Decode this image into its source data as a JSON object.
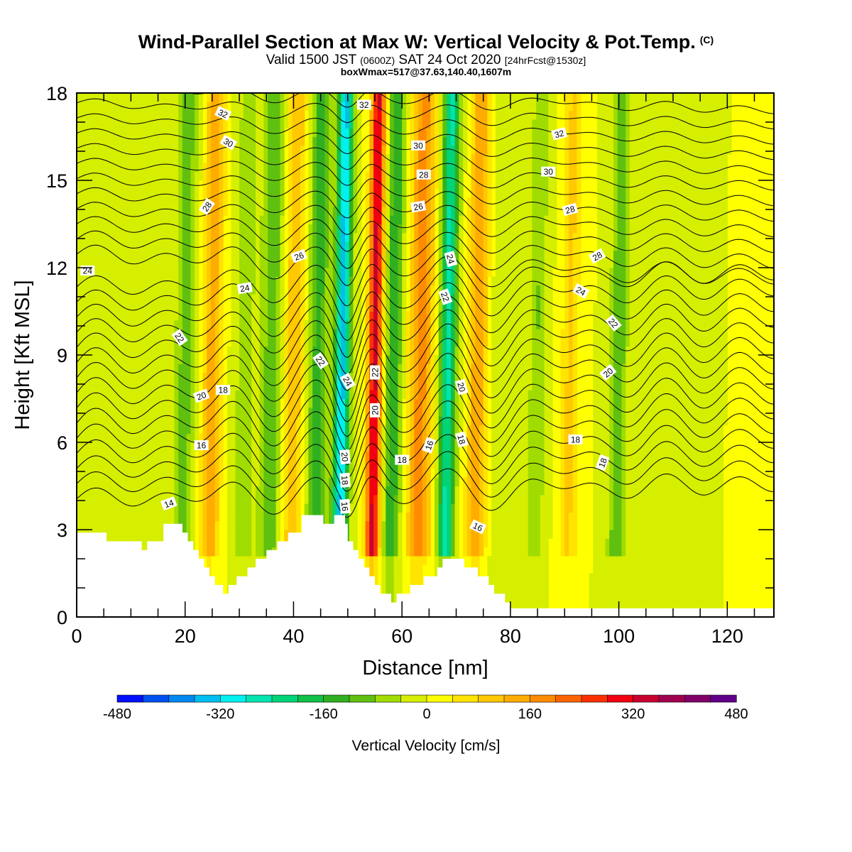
{
  "header": {
    "title": "Wind-Parallel Section at Max W: Vertical Velocity & Pot.Temp.",
    "title_mark": "(C)",
    "valid_prefix": "Valid 1500 JST",
    "valid_utc": "(0600Z)",
    "valid_date": "SAT 24 Oct 2020",
    "forecast": "[24hrFcst@1530z]",
    "boxinfo": "boxWmax=517@37.63,140.40,1607m"
  },
  "chart_data": {
    "type": "heatmap",
    "xlabel": "Distance [nm]",
    "ylabel": "Height [Kft MSL]",
    "xlim": [
      0,
      128.6
    ],
    "ylim": [
      0,
      18
    ],
    "xticks": [
      0,
      20,
      40,
      60,
      80,
      100,
      120
    ],
    "yticks": [
      0,
      3,
      6,
      9,
      12,
      15,
      18
    ],
    "colorbar": {
      "title": "Vertical Velocity [cm/s]",
      "tick_labels": [
        "-480",
        "-320",
        "-160",
        "0",
        "160",
        "320",
        "480"
      ],
      "tick_values": [
        -480,
        -320,
        -160,
        0,
        160,
        320,
        480
      ],
      "colors": [
        "#0010ff",
        "#0050f0",
        "#0088f0",
        "#00bef0",
        "#00f0f0",
        "#00e4b0",
        "#00d478",
        "#10c048",
        "#30b020",
        "#60c010",
        "#a0dc00",
        "#d6ee00",
        "#ffff00",
        "#ffe400",
        "#ffc800",
        "#ffac00",
        "#ff8c00",
        "#ff6400",
        "#ff3000",
        "#f00010",
        "#c80030",
        "#a00050",
        "#80006a",
        "#600088"
      ]
    },
    "velocity_bands": [
      {
        "x": 2,
        "w": 4,
        "v": -40
      },
      {
        "x": 20,
        "w": 1.8,
        "v": -100
      },
      {
        "x": 25,
        "w": 1.8,
        "v": 140
      },
      {
        "x": 31,
        "w": 2,
        "v": -60
      },
      {
        "x": 36,
        "w": 2,
        "v": -110
      },
      {
        "x": 40,
        "w": 2,
        "v": 110
      },
      {
        "x": 44.5,
        "w": 1.8,
        "v": -140
      },
      {
        "x": 49,
        "w": 1.4,
        "v": -330
      },
      {
        "x": 55,
        "w": 1.3,
        "v": 330
      },
      {
        "x": 58.5,
        "w": 1.5,
        "v": -160
      },
      {
        "x": 63.5,
        "w": 2.2,
        "v": 180
      },
      {
        "x": 68.5,
        "w": 1.5,
        "v": -250
      },
      {
        "x": 74,
        "w": 1.8,
        "v": 150
      },
      {
        "x": 79,
        "w": 2.5,
        "v": -40
      },
      {
        "x": 85,
        "w": 1.5,
        "v": -80
      },
      {
        "x": 91,
        "w": 1.6,
        "v": 90
      },
      {
        "x": 100,
        "w": 1.6,
        "v": -110
      },
      {
        "x": 108,
        "w": 2,
        "v": -40
      }
    ],
    "terrain_kft": [
      [
        0,
        2.9
      ],
      [
        5.5,
        2.9
      ],
      [
        5.5,
        2.6
      ],
      [
        12,
        2.6
      ],
      [
        12,
        2.3
      ],
      [
        13,
        2.3
      ],
      [
        13,
        2.6
      ],
      [
        16,
        2.6
      ],
      [
        16,
        3.2
      ],
      [
        19.5,
        3.2
      ],
      [
        19.5,
        2.9
      ],
      [
        20.5,
        2.9
      ],
      [
        20.5,
        2.6
      ],
      [
        21.5,
        2.6
      ],
      [
        21.5,
        2.3
      ],
      [
        22.5,
        2.3
      ],
      [
        22.5,
        2.0
      ],
      [
        23.5,
        2.0
      ],
      [
        23.5,
        1.7
      ],
      [
        24.5,
        1.7
      ],
      [
        24.5,
        1.4
      ],
      [
        25.5,
        1.4
      ],
      [
        25.5,
        1.1
      ],
      [
        27,
        1.1
      ],
      [
        27,
        0.8
      ],
      [
        28,
        0.8
      ],
      [
        28,
        1.1
      ],
      [
        29.5,
        1.1
      ],
      [
        29.5,
        1.4
      ],
      [
        31.5,
        1.4
      ],
      [
        31.5,
        1.7
      ],
      [
        33,
        1.7
      ],
      [
        33,
        2.0
      ],
      [
        35,
        2.0
      ],
      [
        35,
        2.3
      ],
      [
        37,
        2.3
      ],
      [
        37,
        2.6
      ],
      [
        39,
        2.6
      ],
      [
        39,
        2.9
      ],
      [
        41.5,
        2.9
      ],
      [
        41.5,
        3.5
      ],
      [
        45.5,
        3.5
      ],
      [
        45.5,
        3.2
      ],
      [
        47.5,
        3.2
      ],
      [
        47.5,
        3.5
      ],
      [
        49.5,
        3.5
      ],
      [
        49.5,
        3.2
      ],
      [
        50,
        3.2
      ],
      [
        50,
        2.6
      ],
      [
        51,
        2.6
      ],
      [
        51,
        2.3
      ],
      [
        52,
        2.3
      ],
      [
        52,
        2.0
      ],
      [
        53,
        2.0
      ],
      [
        53,
        1.7
      ],
      [
        54,
        1.7
      ],
      [
        54,
        1.4
      ],
      [
        55,
        1.4
      ],
      [
        55,
        1.1
      ],
      [
        56,
        1.1
      ],
      [
        56,
        0.8
      ],
      [
        58,
        0.8
      ],
      [
        58,
        0.5
      ],
      [
        59,
        0.5
      ],
      [
        59,
        0.8
      ],
      [
        61.5,
        0.8
      ],
      [
        61.5,
        1.1
      ],
      [
        64,
        1.1
      ],
      [
        64,
        1.4
      ],
      [
        66.5,
        1.4
      ],
      [
        66.5,
        1.7
      ],
      [
        67.5,
        1.7
      ],
      [
        67.5,
        2.0
      ],
      [
        71.5,
        2.0
      ],
      [
        71.5,
        1.7
      ],
      [
        74,
        1.7
      ],
      [
        74,
        1.4
      ],
      [
        76,
        1.4
      ],
      [
        76,
        1.1
      ],
      [
        77,
        1.1
      ],
      [
        77,
        0.8
      ],
      [
        79,
        0.8
      ],
      [
        79,
        0.5
      ],
      [
        80,
        0.5
      ],
      [
        80,
        0.3
      ],
      [
        128.6,
        0.3
      ]
    ],
    "contour_labels": [
      {
        "text": "32",
        "x": 27,
        "y": 17.3,
        "rot": 25
      },
      {
        "text": "32",
        "x": 53,
        "y": 17.6,
        "rot": 0
      },
      {
        "text": "32",
        "x": 89,
        "y": 16.6,
        "rot": -15
      },
      {
        "text": "30",
        "x": 28,
        "y": 16.3,
        "rot": 30
      },
      {
        "text": "30",
        "x": 63,
        "y": 16.2,
        "rot": 0
      },
      {
        "text": "30",
        "x": 87,
        "y": 15.3,
        "rot": 0
      },
      {
        "text": "28",
        "x": 24,
        "y": 14.1,
        "rot": -55
      },
      {
        "text": "28",
        "x": 64,
        "y": 15.2,
        "rot": 0
      },
      {
        "text": "28",
        "x": 91,
        "y": 14.0,
        "rot": -15
      },
      {
        "text": "28",
        "x": 96,
        "y": 12.4,
        "rot": -30
      },
      {
        "text": "26",
        "x": 41,
        "y": 12.4,
        "rot": -20
      },
      {
        "text": "26",
        "x": 63,
        "y": 14.1,
        "rot": -10
      },
      {
        "text": "24",
        "x": 2,
        "y": 11.9,
        "rot": 0
      },
      {
        "text": "24",
        "x": 31,
        "y": 11.3,
        "rot": -10
      },
      {
        "text": "24",
        "x": 69,
        "y": 12.3,
        "rot": 75
      },
      {
        "text": "24",
        "x": 93,
        "y": 11.2,
        "rot": 30
      },
      {
        "text": "24",
        "x": 50,
        "y": 8.1,
        "rot": 60
      },
      {
        "text": "22",
        "x": 19,
        "y": 9.6,
        "rot": 55
      },
      {
        "text": "22",
        "x": 45,
        "y": 8.8,
        "rot": 55
      },
      {
        "text": "22",
        "x": 55,
        "y": 8.4,
        "rot": -90
      },
      {
        "text": "22",
        "x": 68,
        "y": 11.0,
        "rot": 70
      },
      {
        "text": "22",
        "x": 99,
        "y": 10.1,
        "rot": 50
      },
      {
        "text": "20",
        "x": 23,
        "y": 7.6,
        "rot": -20
      },
      {
        "text": "20",
        "x": 55,
        "y": 7.1,
        "rot": -90
      },
      {
        "text": "20",
        "x": 71,
        "y": 7.9,
        "rot": 75
      },
      {
        "text": "20",
        "x": 98,
        "y": 8.4,
        "rot": -40
      },
      {
        "text": "20",
        "x": 49.5,
        "y": 5.5,
        "rot": 85
      },
      {
        "text": "18",
        "x": 27,
        "y": 7.8,
        "rot": 0
      },
      {
        "text": "18",
        "x": 60,
        "y": 5.4,
        "rot": 0
      },
      {
        "text": "18",
        "x": 71,
        "y": 6.1,
        "rot": 75
      },
      {
        "text": "18",
        "x": 92,
        "y": 6.1,
        "rot": 0
      },
      {
        "text": "18",
        "x": 97,
        "y": 5.3,
        "rot": -70
      },
      {
        "text": "18",
        "x": 49.5,
        "y": 4.7,
        "rot": 85
      },
      {
        "text": "16",
        "x": 23,
        "y": 5.9,
        "rot": 0
      },
      {
        "text": "16",
        "x": 65,
        "y": 5.9,
        "rot": -70
      },
      {
        "text": "16",
        "x": 74,
        "y": 3.1,
        "rot": 25
      },
      {
        "text": "16",
        "x": 49.5,
        "y": 3.8,
        "rot": 85
      },
      {
        "text": "14",
        "x": 17,
        "y": 3.9,
        "rot": -20
      }
    ]
  }
}
